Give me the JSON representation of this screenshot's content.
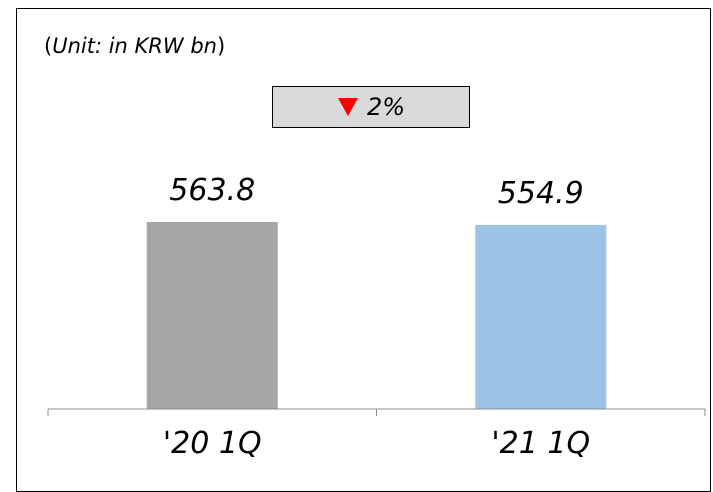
{
  "unit_label": {
    "open": "(",
    "text": "Unit: in KRW bn",
    "close": ")"
  },
  "change_badge": {
    "direction": "down",
    "arrow_color": "#ff0000",
    "value": "2%"
  },
  "chart_data": {
    "type": "bar",
    "categories": [
      "'20 1Q",
      "'21 1Q"
    ],
    "values": [
      563.8,
      554.9
    ],
    "value_labels": [
      "563.8",
      "554.9"
    ],
    "bar_colors": [
      "#a6a6a6",
      "#9dc3e6"
    ],
    "title": "",
    "xlabel": "",
    "ylabel": "",
    "grid": false,
    "legend": "none"
  }
}
